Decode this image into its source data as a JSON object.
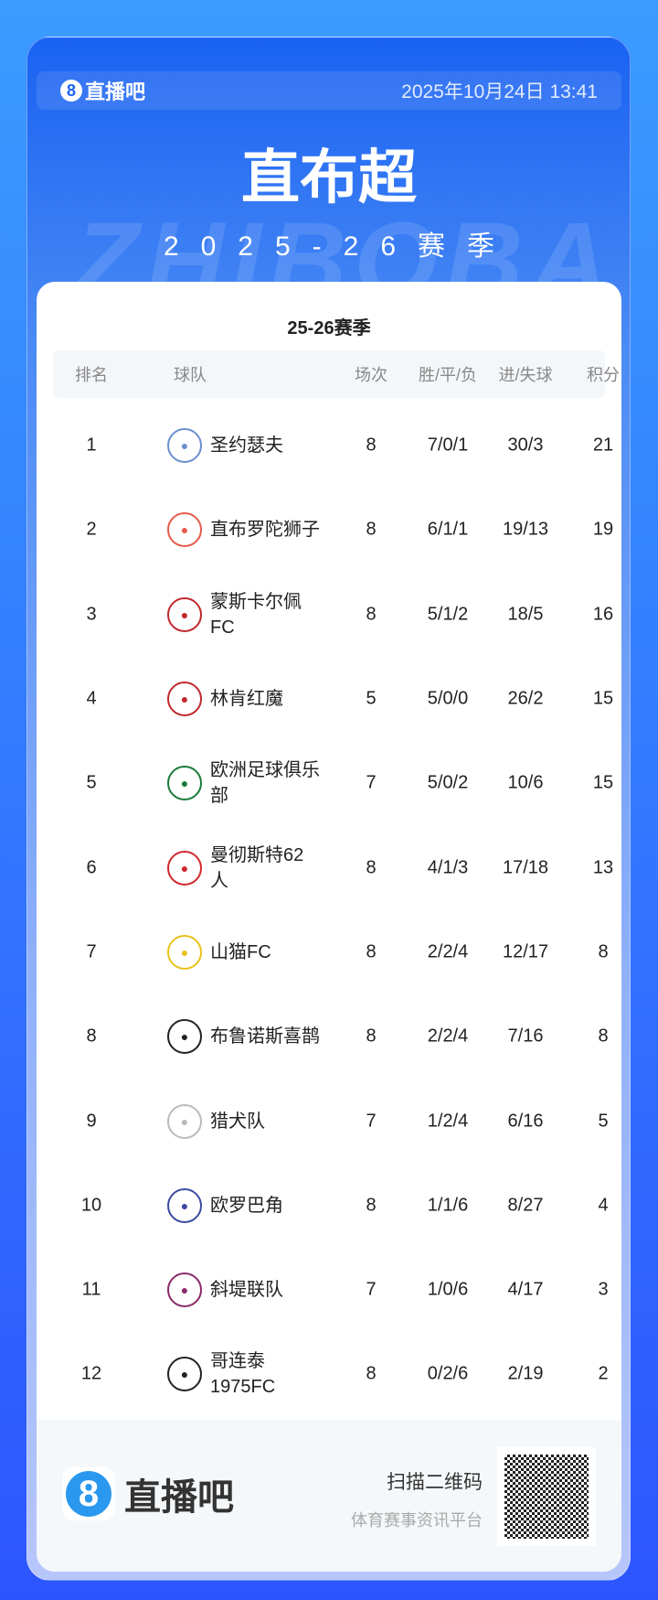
{
  "header": {
    "brand": "直播吧",
    "date": "2025年10月24日 13:41",
    "title": "直布超",
    "watermark": "ZHIBOBA",
    "season": "2025-26赛季"
  },
  "table": {
    "subtitle": "25-26赛季",
    "columns": [
      "排名",
      "球队",
      "场次",
      "胜/平/负",
      "进/失球",
      "积分"
    ],
    "rows": [
      {
        "rank": "1",
        "team": "圣约瑟夫",
        "games": "8",
        "wdl": "7/0/1",
        "goals": "30/3",
        "pts": "21",
        "color": "#6a8fcf"
      },
      {
        "rank": "2",
        "team": "直布罗陀狮子",
        "games": "8",
        "wdl": "6/1/1",
        "goals": "19/13",
        "pts": "19",
        "color": "#e65a4a"
      },
      {
        "rank": "3",
        "team": "蒙斯卡尔佩FC",
        "games": "8",
        "wdl": "5/1/2",
        "goals": "18/5",
        "pts": "16",
        "color": "#c0282d"
      },
      {
        "rank": "4",
        "team": "林肯红魔",
        "games": "5",
        "wdl": "5/0/0",
        "goals": "26/2",
        "pts": "15",
        "color": "#c0282d"
      },
      {
        "rank": "5",
        "team": "欧洲足球俱乐部",
        "games": "7",
        "wdl": "5/0/2",
        "goals": "10/6",
        "pts": "15",
        "color": "#1a7a3a"
      },
      {
        "rank": "6",
        "team": "曼彻斯特62人",
        "games": "8",
        "wdl": "4/1/3",
        "goals": "17/18",
        "pts": "13",
        "color": "#d0282d"
      },
      {
        "rank": "7",
        "team": "山猫FC",
        "games": "8",
        "wdl": "2/2/4",
        "goals": "12/17",
        "pts": "8",
        "color": "#e8c21a"
      },
      {
        "rank": "8",
        "team": "布鲁诺斯喜鹊",
        "games": "8",
        "wdl": "2/2/4",
        "goals": "7/16",
        "pts": "8",
        "color": "#222222"
      },
      {
        "rank": "9",
        "team": "猎犬队",
        "games": "7",
        "wdl": "1/2/4",
        "goals": "6/16",
        "pts": "5",
        "color": "#bbbbbb"
      },
      {
        "rank": "10",
        "team": "欧罗巴角",
        "games": "8",
        "wdl": "1/1/6",
        "goals": "8/27",
        "pts": "4",
        "color": "#3a4aa0"
      },
      {
        "rank": "11",
        "team": "斜堤联队",
        "games": "7",
        "wdl": "1/0/6",
        "goals": "4/17",
        "pts": "3",
        "color": "#8a2a6a"
      },
      {
        "rank": "12",
        "team": "哥连泰1975FC",
        "games": "8",
        "wdl": "0/2/6",
        "goals": "2/19",
        "pts": "2",
        "color": "#222222"
      }
    ]
  },
  "footer": {
    "brand": "直播吧",
    "scan": "扫描二维码",
    "platform": "体育赛事资讯平台"
  }
}
